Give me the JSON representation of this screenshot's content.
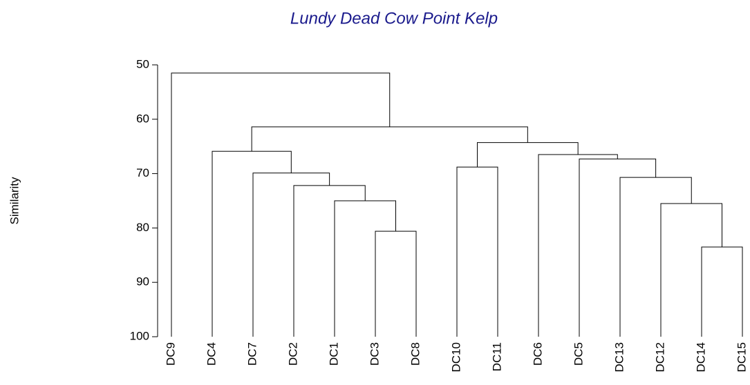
{
  "chart_data": {
    "type": "dendrogram",
    "title": "Lundy Dead Cow Point Kelp",
    "ylabel": "Similarity",
    "ylim": [
      50,
      100
    ],
    "yticks": [
      50,
      60,
      70,
      80,
      90,
      100
    ],
    "color": "#000000",
    "title_color": "#1a1a8c",
    "leaves": [
      "DC9",
      "DC4",
      "DC7",
      "DC2",
      "DC1",
      "DC3",
      "DC8",
      "DC10",
      "DC11",
      "DC6",
      "DC5",
      "DC13",
      "DC12",
      "DC14",
      "DC15"
    ],
    "merges": [
      {
        "children": [
          5,
          6
        ],
        "height": 80.6
      },
      {
        "children": [
          4,
          15
        ],
        "height": 75.0
      },
      {
        "children": [
          3,
          16
        ],
        "height": 72.2
      },
      {
        "children": [
          2,
          17
        ],
        "height": 69.9
      },
      {
        "children": [
          1,
          18
        ],
        "height": 65.9
      },
      {
        "children": [
          7,
          8
        ],
        "height": 68.8
      },
      {
        "children": [
          13,
          14
        ],
        "height": 83.5
      },
      {
        "children": [
          12,
          21
        ],
        "height": 75.5
      },
      {
        "children": [
          11,
          22
        ],
        "height": 70.7
      },
      {
        "children": [
          10,
          23
        ],
        "height": 67.3
      },
      {
        "children": [
          9,
          24
        ],
        "height": 66.5
      },
      {
        "children": [
          20,
          25
        ],
        "height": 64.3
      },
      {
        "children": [
          19,
          26
        ],
        "height": 61.4
      },
      {
        "children": [
          0,
          27
        ],
        "height": 51.5
      }
    ]
  }
}
